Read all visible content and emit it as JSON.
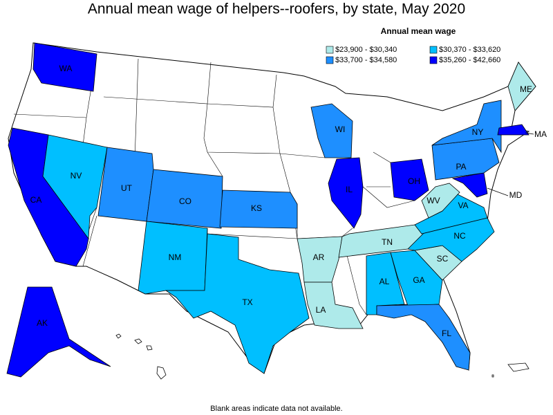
{
  "title": "Annual mean wage of helpers--roofers, by state, May 2020",
  "legend": {
    "title": "Annual mean wage",
    "items": [
      {
        "label": "$23,900 - $30,340",
        "color": "#aeeaea"
      },
      {
        "label": "$30,370 - $33,620",
        "color": "#00bfff"
      },
      {
        "label": "$33,700 - $34,580",
        "color": "#1e8fff"
      },
      {
        "label": "$35,260 - $42,660",
        "color": "#0000ff"
      }
    ]
  },
  "states": [
    {
      "label": "WA",
      "color": "#0000ff"
    },
    {
      "label": "CA",
      "color": "#0000ff"
    },
    {
      "label": "NV",
      "color": "#00bfff"
    },
    {
      "label": "UT",
      "color": "#1e8fff"
    },
    {
      "label": "CO",
      "color": "#1e8fff"
    },
    {
      "label": "KS",
      "color": "#1e8fff"
    },
    {
      "label": "NM",
      "color": "#00bfff"
    },
    {
      "label": "TX",
      "color": "#00bfff"
    },
    {
      "label": "AR",
      "color": "#aeeaea"
    },
    {
      "label": "LA",
      "color": "#aeeaea"
    },
    {
      "label": "AL",
      "color": "#00bfff"
    },
    {
      "label": "GA",
      "color": "#00bfff"
    },
    {
      "label": "FL",
      "color": "#1e8fff"
    },
    {
      "label": "SC",
      "color": "#aeeaea"
    },
    {
      "label": "NC",
      "color": "#00bfff"
    },
    {
      "label": "TN",
      "color": "#aeeaea"
    },
    {
      "label": "VA",
      "color": "#00bfff"
    },
    {
      "label": "WV",
      "color": "#aeeaea"
    },
    {
      "label": "MD",
      "color": "#0000ff"
    },
    {
      "label": "OH",
      "color": "#0000ff"
    },
    {
      "label": "PA",
      "color": "#1e8fff"
    },
    {
      "label": "NY",
      "color": "#1e8fff"
    },
    {
      "label": "IL",
      "color": "#0000ff"
    },
    {
      "label": "WI",
      "color": "#1e8fff"
    },
    {
      "label": "MA",
      "color": "#0000ff"
    },
    {
      "label": "ME",
      "color": "#aeeaea"
    },
    {
      "label": "AK",
      "color": "#0000ff"
    }
  ],
  "footnote": "Blank areas indicate data not available."
}
